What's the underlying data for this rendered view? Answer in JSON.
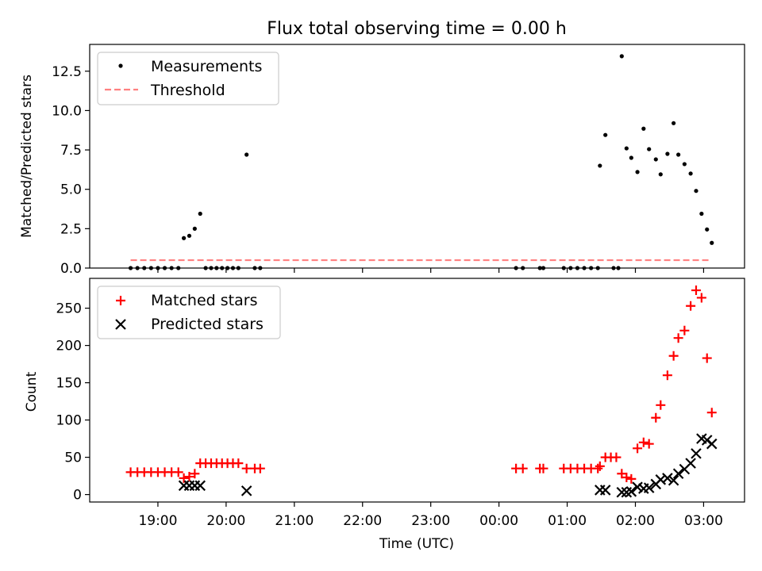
{
  "chart_data": [
    {
      "type": "scatter",
      "title": "Flux total observing time = 0.00 h",
      "xlabel": "",
      "ylabel": "Matched/Predicted stars",
      "xlim": [
        18.0,
        27.6
      ],
      "ylim": [
        0,
        14.2
      ],
      "yticks": [
        0.0,
        2.5,
        5.0,
        7.5,
        10.0,
        12.5
      ],
      "ytick_labels": [
        "0.0",
        "2.5",
        "5.0",
        "7.5",
        "10.0",
        "12.5"
      ],
      "xticks": [
        19,
        20,
        21,
        22,
        23,
        24,
        25,
        26,
        27
      ],
      "legend": {
        "position": "top-left",
        "entries": [
          "Measurements",
          "Threshold"
        ]
      },
      "threshold": {
        "name": "Threshold",
        "value": 0.5,
        "x": [
          18.6,
          27.1
        ],
        "color": "#ff8080"
      },
      "series": [
        {
          "name": "Measurements",
          "marker": "dot",
          "color": "#000000",
          "points": [
            [
              18.6,
              0
            ],
            [
              18.7,
              0
            ],
            [
              18.8,
              0
            ],
            [
              18.9,
              0
            ],
            [
              19.0,
              0
            ],
            [
              19.1,
              0
            ],
            [
              19.2,
              0
            ],
            [
              19.3,
              0
            ],
            [
              19.38,
              1.9
            ],
            [
              19.46,
              2.05
            ],
            [
              19.54,
              2.5
            ],
            [
              19.62,
              3.45
            ],
            [
              19.7,
              0
            ],
            [
              19.78,
              0
            ],
            [
              19.86,
              0
            ],
            [
              19.94,
              0
            ],
            [
              20.02,
              0
            ],
            [
              20.1,
              0
            ],
            [
              20.18,
              0
            ],
            [
              20.3,
              7.2
            ],
            [
              20.42,
              0
            ],
            [
              20.5,
              0
            ],
            [
              24.25,
              0
            ],
            [
              24.35,
              0
            ],
            [
              24.6,
              0
            ],
            [
              24.65,
              0
            ],
            [
              24.95,
              0
            ],
            [
              25.05,
              0
            ],
            [
              25.15,
              0
            ],
            [
              25.25,
              0
            ],
            [
              25.35,
              0
            ],
            [
              25.45,
              0
            ],
            [
              25.48,
              6.5
            ],
            [
              25.56,
              8.45
            ],
            [
              25.68,
              0
            ],
            [
              25.75,
              0
            ],
            [
              25.8,
              13.45
            ],
            [
              25.87,
              7.6
            ],
            [
              25.94,
              7.0
            ],
            [
              26.03,
              6.1
            ],
            [
              26.12,
              8.85
            ],
            [
              26.2,
              7.55
            ],
            [
              26.3,
              6.9
            ],
            [
              26.37,
              5.95
            ],
            [
              26.47,
              7.25
            ],
            [
              26.56,
              9.2
            ],
            [
              26.63,
              7.2
            ],
            [
              26.72,
              6.6
            ],
            [
              26.81,
              6.0
            ],
            [
              26.89,
              4.9
            ],
            [
              26.97,
              3.45
            ],
            [
              27.05,
              2.45
            ],
            [
              27.12,
              1.6
            ]
          ]
        }
      ]
    },
    {
      "type": "scatter",
      "title": "",
      "xlabel": "Time (UTC)",
      "ylabel": "Count",
      "xlim": [
        18.0,
        27.6
      ],
      "ylim": [
        -10,
        290
      ],
      "yticks": [
        0,
        50,
        100,
        150,
        200,
        250
      ],
      "ytick_labels": [
        "0",
        "50",
        "100",
        "150",
        "200",
        "250"
      ],
      "xticks": [
        19,
        20,
        21,
        22,
        23,
        24,
        25,
        26,
        27
      ],
      "xtick_labels": [
        "19:00",
        "20:00",
        "21:00",
        "22:00",
        "23:00",
        "00:00",
        "01:00",
        "02:00",
        "03:00"
      ],
      "legend": {
        "position": "top-left",
        "entries": [
          "Matched stars",
          "Predicted stars"
        ]
      },
      "series": [
        {
          "name": "Matched stars",
          "marker": "plus",
          "color": "#ff0000",
          "points": [
            [
              18.6,
              30
            ],
            [
              18.7,
              30
            ],
            [
              18.8,
              30
            ],
            [
              18.9,
              30
            ],
            [
              19.0,
              30
            ],
            [
              19.1,
              30
            ],
            [
              19.2,
              30
            ],
            [
              19.3,
              30
            ],
            [
              19.38,
              22
            ],
            [
              19.46,
              24
            ],
            [
              19.54,
              28
            ],
            [
              19.62,
              42
            ],
            [
              19.7,
              42
            ],
            [
              19.78,
              42
            ],
            [
              19.86,
              42
            ],
            [
              19.94,
              42
            ],
            [
              20.02,
              42
            ],
            [
              20.1,
              42
            ],
            [
              20.18,
              42
            ],
            [
              20.3,
              35
            ],
            [
              20.42,
              35
            ],
            [
              20.5,
              35
            ],
            [
              24.25,
              35
            ],
            [
              24.35,
              35
            ],
            [
              24.6,
              35
            ],
            [
              24.65,
              35
            ],
            [
              24.95,
              35
            ],
            [
              25.05,
              35
            ],
            [
              25.15,
              35
            ],
            [
              25.25,
              35
            ],
            [
              25.35,
              35
            ],
            [
              25.45,
              35
            ],
            [
              25.48,
              38
            ],
            [
              25.56,
              50
            ],
            [
              25.64,
              50
            ],
            [
              25.72,
              50
            ],
            [
              25.8,
              28
            ],
            [
              25.87,
              23
            ],
            [
              25.94,
              21
            ],
            [
              26.03,
              62
            ],
            [
              26.12,
              70
            ],
            [
              26.2,
              68
            ],
            [
              26.3,
              103
            ],
            [
              26.37,
              120
            ],
            [
              26.47,
              160
            ],
            [
              26.56,
              186
            ],
            [
              26.63,
              210
            ],
            [
              26.72,
              220
            ],
            [
              26.81,
              253
            ],
            [
              26.89,
              274
            ],
            [
              26.97,
              264
            ],
            [
              27.05,
              183
            ],
            [
              27.12,
              110
            ]
          ]
        },
        {
          "name": "Predicted stars",
          "marker": "x",
          "color": "#000000",
          "points": [
            [
              19.38,
              12
            ],
            [
              19.46,
              12
            ],
            [
              19.54,
              12
            ],
            [
              19.62,
              12
            ],
            [
              20.3,
              5
            ],
            [
              25.48,
              6
            ],
            [
              25.56,
              6
            ],
            [
              25.8,
              3
            ],
            [
              25.87,
              3
            ],
            [
              25.94,
              4
            ],
            [
              26.03,
              10
            ],
            [
              26.12,
              8
            ],
            [
              26.2,
              9
            ],
            [
              26.3,
              14
            ],
            [
              26.37,
              20
            ],
            [
              26.47,
              22
            ],
            [
              26.56,
              19
            ],
            [
              26.63,
              28
            ],
            [
              26.72,
              34
            ],
            [
              26.81,
              42
            ],
            [
              26.89,
              55
            ],
            [
              26.97,
              75
            ],
            [
              27.05,
              73
            ],
            [
              27.12,
              68
            ]
          ]
        }
      ]
    }
  ]
}
